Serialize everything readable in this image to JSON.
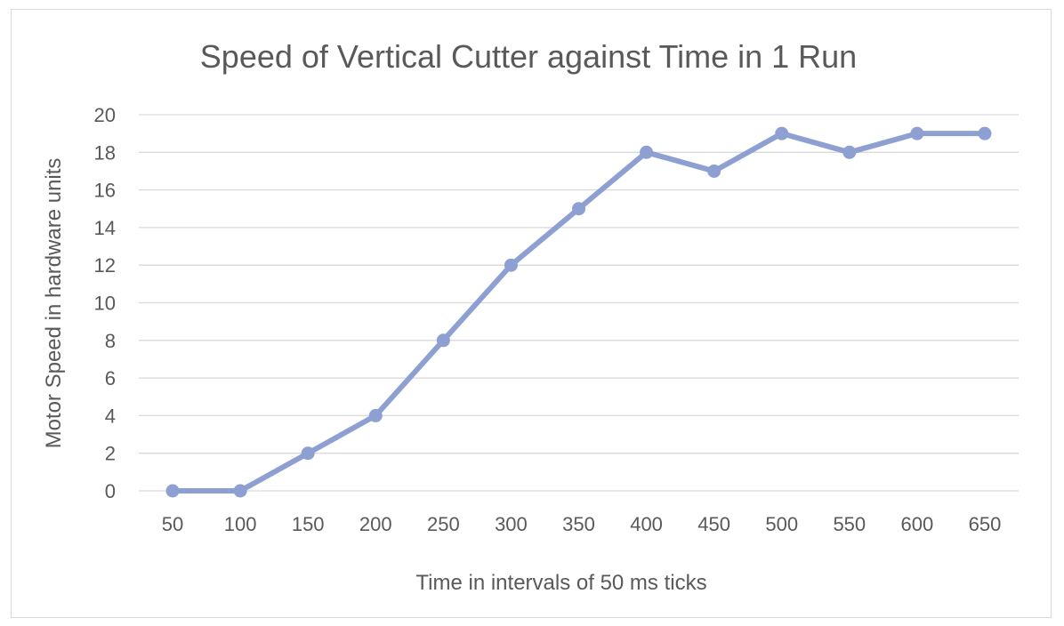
{
  "chart_data": {
    "type": "line",
    "title": "Speed of Vertical Cutter against Time in 1 Run",
    "xlabel": "Time in intervals of 50 ms ticks",
    "ylabel": "Motor Speed in hardware units",
    "categories": [
      "50",
      "100",
      "150",
      "200",
      "250",
      "300",
      "350",
      "400",
      "450",
      "500",
      "550",
      "600",
      "650"
    ],
    "series": [
      {
        "values": [
          0,
          0,
          2,
          4,
          8,
          12,
          15,
          18,
          17,
          19,
          18,
          19,
          19
        ],
        "color": "#8e9fd1"
      }
    ],
    "ylim": [
      0,
      20
    ],
    "yticks": [
      "0",
      "2",
      "4",
      "6",
      "8",
      "10",
      "12",
      "14",
      "16",
      "18",
      "20"
    ],
    "grid": true,
    "legend": "none"
  }
}
